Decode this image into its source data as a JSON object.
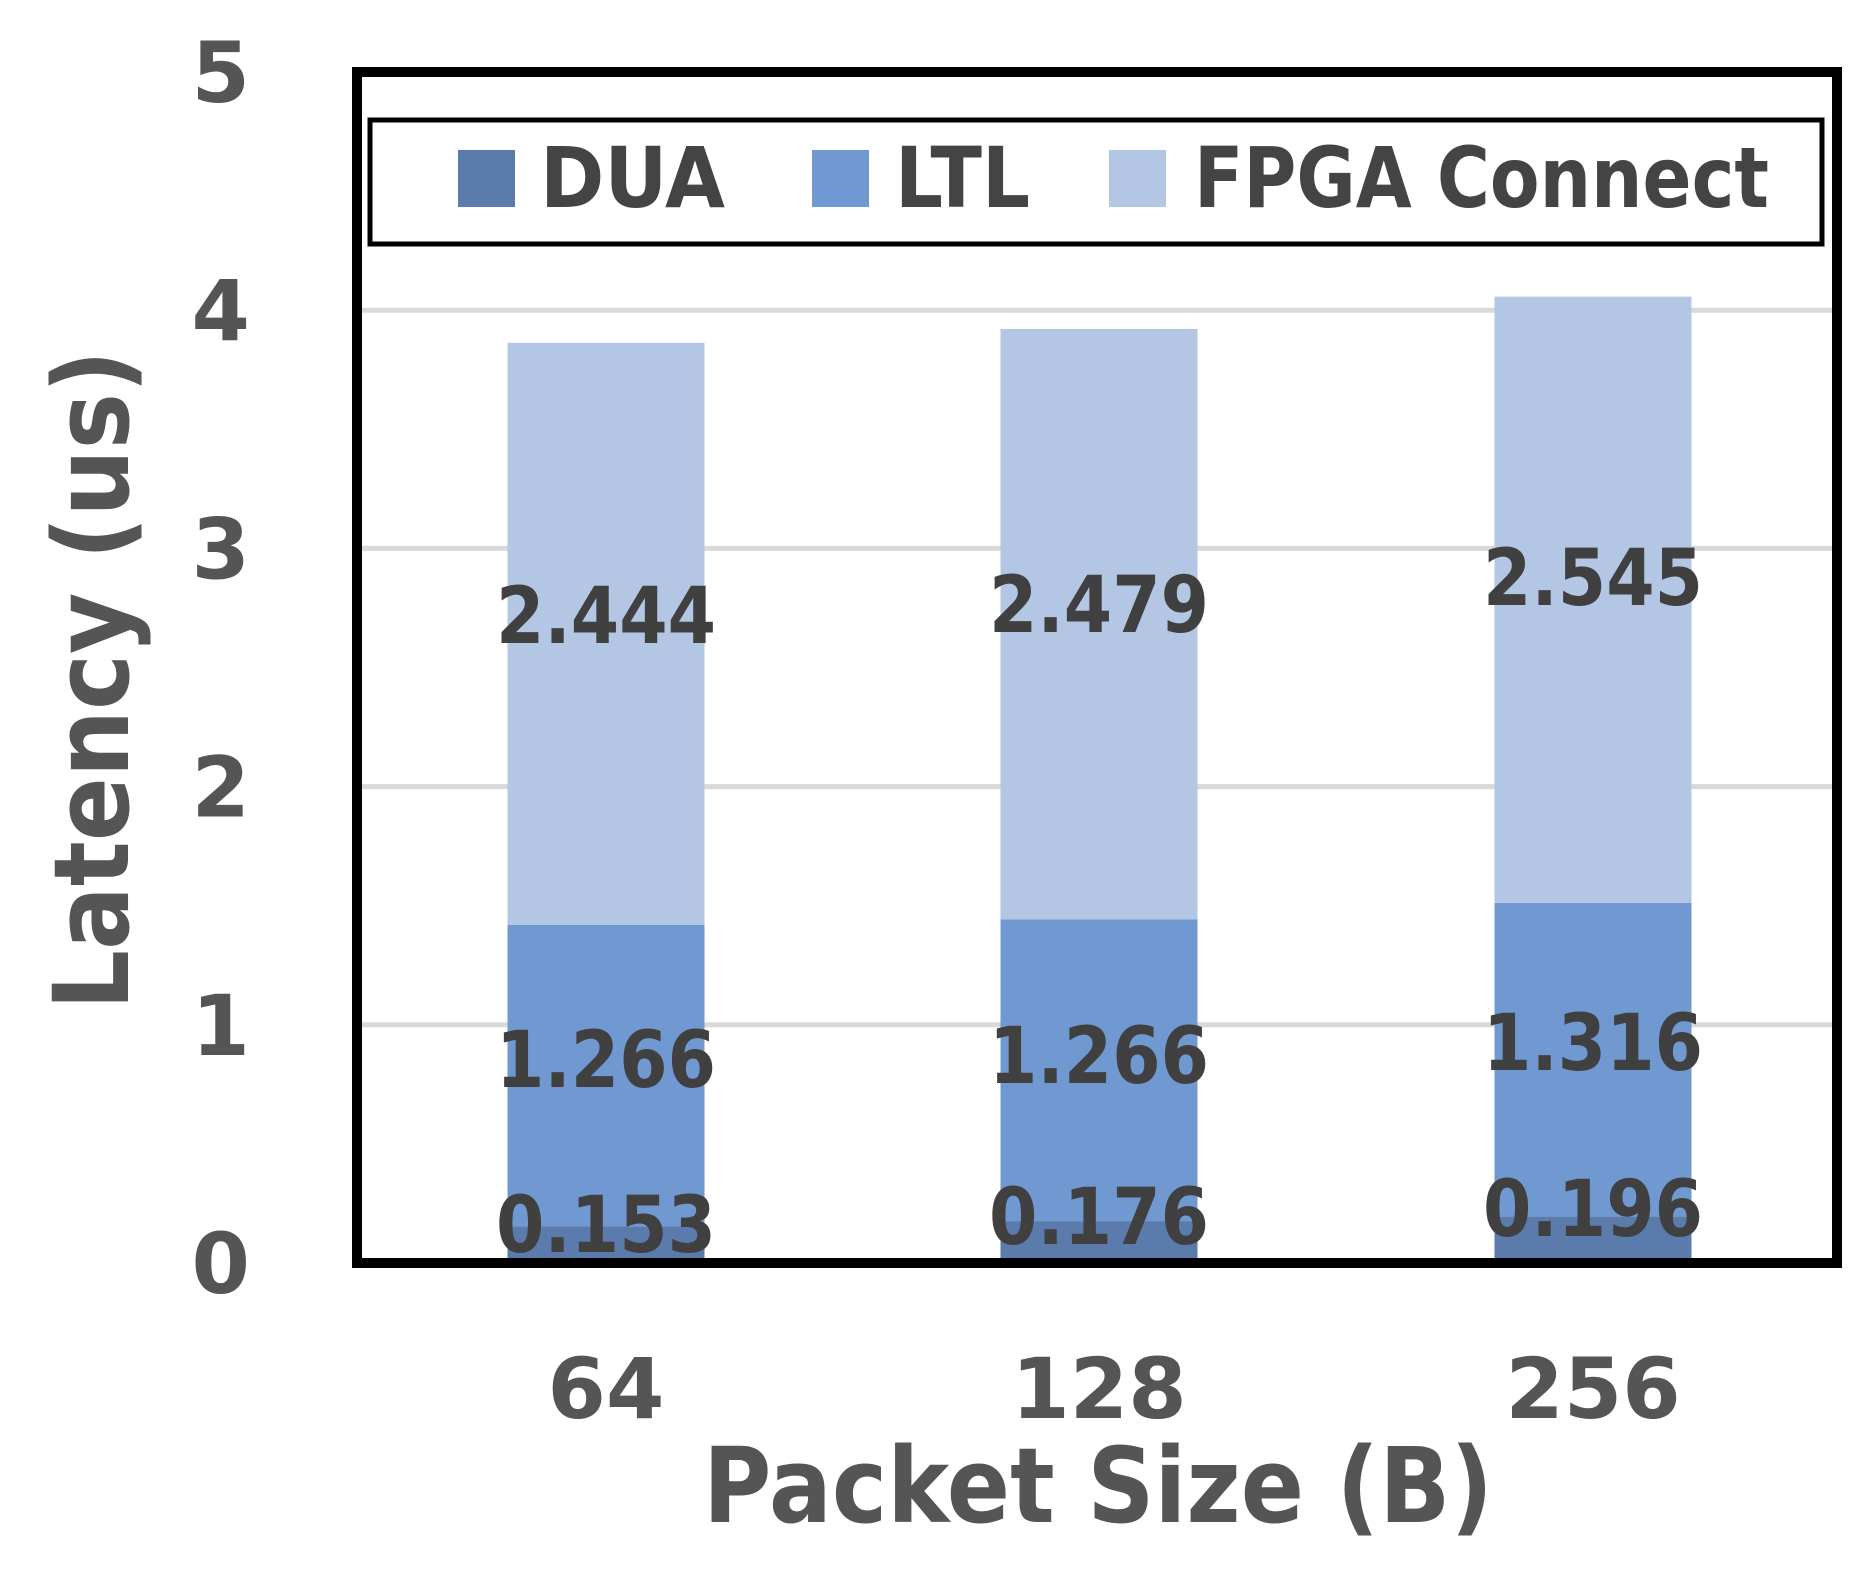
{
  "chart_data": {
    "type": "bar",
    "stacked": true,
    "categories": [
      "64",
      "128",
      "256"
    ],
    "series": [
      {
        "name": "DUA",
        "values": [
          0.153,
          0.176,
          0.196
        ],
        "labels": [
          "0.153",
          "0.176",
          "0.196"
        ],
        "color": "#5b7bad"
      },
      {
        "name": "LTL",
        "values": [
          1.266,
          1.266,
          1.316
        ],
        "labels": [
          "1.266",
          "1.266",
          "1.316"
        ],
        "color": "#7099d1"
      },
      {
        "name": "FPGA Connect",
        "values": [
          2.444,
          2.479,
          2.545
        ],
        "labels": [
          "2.444",
          "2.479",
          "2.545"
        ],
        "color": "#b3c6e3"
      }
    ],
    "xlabel": "Packet Size (B)",
    "ylabel": "Latency (us)",
    "ylim": [
      0,
      5
    ],
    "yticks": [
      "0",
      "1",
      "2",
      "3",
      "4",
      "5"
    ],
    "grid": true,
    "legend_position": "top"
  }
}
